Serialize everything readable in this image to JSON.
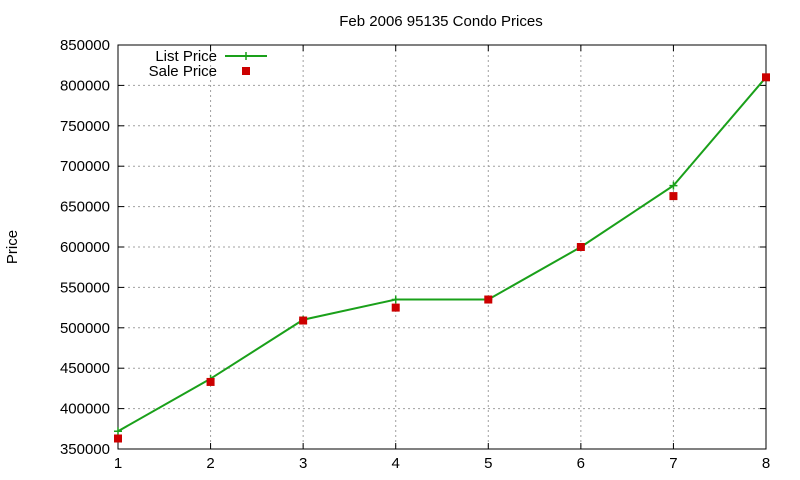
{
  "chart_data": {
    "type": "line",
    "title": "Feb 2006 95135 Condo Prices",
    "xlabel": "",
    "ylabel": "Price",
    "x": [
      1,
      2,
      3,
      4,
      5,
      6,
      7,
      8
    ],
    "xlim": [
      1,
      8
    ],
    "ylim": [
      350000,
      850000
    ],
    "x_ticks": [
      "1",
      "2",
      "3",
      "4",
      "5",
      "6",
      "7",
      "8"
    ],
    "y_ticks": [
      "350000",
      "400000",
      "450000",
      "500000",
      "550000",
      "600000",
      "650000",
      "700000",
      "750000",
      "800000",
      "850000"
    ],
    "grid": true,
    "legend_position": "top-left",
    "series": [
      {
        "name": "List Price",
        "style": "line-with-plus-markers",
        "color": "#1aa01a",
        "values": [
          372000,
          437000,
          510000,
          535000,
          535000,
          600000,
          676000,
          810000
        ]
      },
      {
        "name": "Sale Price",
        "style": "square-markers",
        "color": "#cc0000",
        "values": [
          363000,
          433000,
          509000,
          525000,
          535000,
          600000,
          663000,
          810000
        ]
      }
    ]
  }
}
